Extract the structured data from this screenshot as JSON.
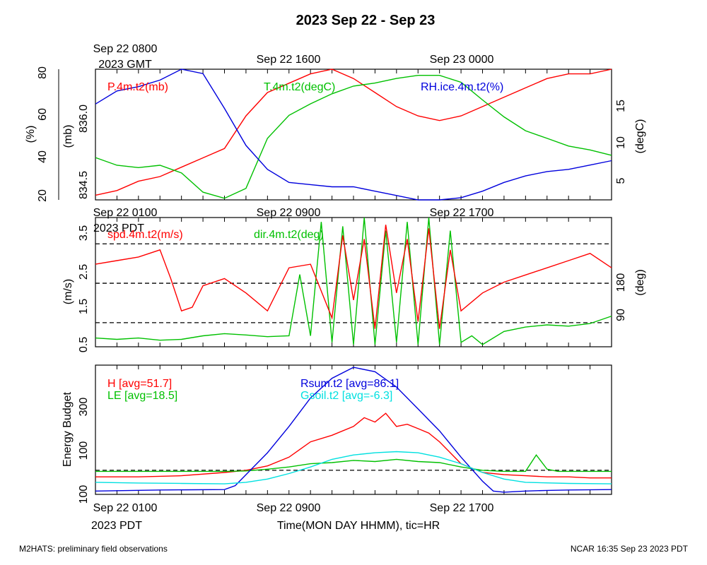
{
  "title": "2023 Sep 22 - Sep 23",
  "footer": {
    "left": "M2HATS: preliminary field observations",
    "right": "NCAR 16:35 Sep 23 2023 PDT"
  },
  "top_axis": {
    "ticks": [
      "Sep 22 0800",
      "Sep 22 1600",
      "Sep 23 0000"
    ],
    "second_line": "2023 GMT"
  },
  "bottom_axis": {
    "ticks": [
      "Sep 22 0100",
      "Sep 22 0900",
      "Sep 22 1700"
    ],
    "second_line": "2023 PDT",
    "xlabel": "Time(MON DAY HHMM), tic=HR"
  },
  "colors": {
    "red": "#ff0000",
    "green": "#00c000",
    "blue": "#0000dd",
    "cyan": "#00e0e0",
    "black": "#000000"
  },
  "chart_data": [
    {
      "type": "line",
      "panel": "pressure-temperature-humidity",
      "x_unit": "hours since Sep 22 0100 PDT",
      "xlim": [
        0,
        24
      ],
      "legend": [
        "P.4m.t2(mb)",
        "T.4m.t2(degC)",
        "RH.ice.4m.t2(%)"
      ],
      "axes": {
        "rh": {
          "label": "(%)",
          "lim": [
            20,
            80
          ],
          "ticks": [
            "20",
            "40",
            "60",
            "80"
          ]
        },
        "p": {
          "label": "(mb)",
          "lim": [
            834.3,
            837.1
          ],
          "ticks": [
            "834.5",
            "836.0"
          ]
        },
        "t": {
          "label": "(degC)",
          "lim": [
            3,
            20
          ],
          "ticks": [
            "5",
            "10",
            "15"
          ]
        }
      },
      "series": [
        {
          "name": "P.4m.t2(mb)",
          "color": "red",
          "axis": "p",
          "x": [
            0,
            1,
            2,
            3,
            4,
            5,
            6,
            7,
            8,
            9,
            10,
            11,
            12,
            13,
            14,
            15,
            16,
            17,
            18,
            19,
            20,
            21,
            22,
            23,
            24
          ],
          "values": [
            834.4,
            834.5,
            834.7,
            834.8,
            835.0,
            835.2,
            835.4,
            836.1,
            836.6,
            836.8,
            837.0,
            837.1,
            836.9,
            836.6,
            836.3,
            836.1,
            836.0,
            836.1,
            836.3,
            836.5,
            836.7,
            836.9,
            837.0,
            837.0,
            837.1
          ]
        },
        {
          "name": "T.4m.t2(degC)",
          "color": "green",
          "axis": "t",
          "x": [
            0,
            1,
            2,
            3,
            4,
            5,
            6,
            7,
            8,
            9,
            10,
            11,
            12,
            13,
            14,
            15,
            16,
            17,
            18,
            19,
            20,
            21,
            22,
            23,
            24
          ],
          "values": [
            8.5,
            7.5,
            7.2,
            7.5,
            6.5,
            4.0,
            3.2,
            4.5,
            11.0,
            14.0,
            15.5,
            16.8,
            17.8,
            18.2,
            18.8,
            19.2,
            19.2,
            18.3,
            16.0,
            13.8,
            12.0,
            11.0,
            10.0,
            9.5,
            8.8
          ]
        },
        {
          "name": "RH.ice.4m.t2(%)",
          "color": "blue",
          "axis": "rh",
          "x": [
            0,
            1,
            2,
            3,
            4,
            5,
            6,
            7,
            8,
            9,
            10,
            11,
            12,
            13,
            14,
            15,
            16,
            17,
            18,
            19,
            20,
            21,
            22,
            23,
            24
          ],
          "values": [
            64,
            70,
            72,
            75,
            80,
            78,
            62,
            45,
            34,
            28,
            27,
            26,
            26,
            24,
            22,
            20,
            20,
            21,
            24,
            28,
            31,
            33,
            34,
            36,
            38
          ]
        }
      ]
    },
    {
      "type": "line",
      "panel": "wind",
      "x_unit": "hours since Sep 22 0100 PDT",
      "xlim": [
        0,
        24
      ],
      "legend": [
        "spd.4m.t2(m/s)",
        "dir.4m.t2(deg)"
      ],
      "axes": {
        "spd": {
          "label": "(m/s)",
          "lim": [
            0.5,
            4.1
          ],
          "ticks": [
            "0.5",
            "1.5",
            "2.5",
            "3.5"
          ]
        },
        "dir": {
          "label": "(deg)",
          "lim": [
            35,
            330
          ],
          "ticks": [
            "90",
            "180"
          ]
        }
      },
      "reference_lines_deg": [
        90,
        180,
        270
      ],
      "series": [
        {
          "name": "spd.4m.t2(m/s)",
          "color": "red",
          "axis": "spd",
          "x": [
            0,
            1,
            2,
            3,
            3.5,
            4,
            4.5,
            5,
            6,
            7,
            8,
            9,
            10,
            11,
            11.5,
            12,
            12.5,
            13,
            13.5,
            14,
            14.5,
            15,
            15.5,
            16,
            16.5,
            17,
            18,
            19,
            20,
            21,
            22,
            23,
            24
          ],
          "values": [
            2.8,
            2.9,
            3.0,
            3.2,
            2.4,
            1.5,
            1.6,
            2.2,
            2.4,
            2.0,
            1.5,
            2.7,
            2.8,
            1.3,
            3.6,
            1.8,
            3.5,
            1.0,
            3.9,
            2.0,
            3.5,
            1.2,
            3.8,
            1.0,
            3.2,
            1.5,
            2.0,
            2.3,
            2.5,
            2.7,
            2.9,
            3.1,
            2.7
          ]
        },
        {
          "name": "dir.4m.t2(deg)",
          "color": "green",
          "axis": "dir",
          "x": [
            0,
            1,
            2,
            3,
            4,
            5,
            6,
            7,
            8,
            9,
            9.5,
            10,
            10.5,
            11,
            11.5,
            12,
            12.5,
            13,
            13.5,
            14,
            14.5,
            15,
            15.5,
            16,
            16.5,
            17,
            17.5,
            18,
            19,
            20,
            21,
            22,
            23,
            24
          ],
          "values": [
            55,
            52,
            55,
            50,
            52,
            60,
            65,
            62,
            58,
            60,
            200,
            60,
            320,
            45,
            310,
            40,
            330,
            40,
            300,
            45,
            320,
            40,
            330,
            40,
            300,
            45,
            60,
            40,
            70,
            80,
            85,
            82,
            88,
            105
          ]
        }
      ]
    },
    {
      "type": "line",
      "panel": "energy-budget",
      "x_unit": "hours since Sep 22 0100 PDT",
      "xlim": [
        0,
        24
      ],
      "ylabel": "Energy Budget",
      "ylim": [
        -110,
        480
      ],
      "yticks": [
        "100",
        "100",
        "300"
      ],
      "reference_line": 0,
      "legend": [
        "H [avg=51.7]",
        "LE [avg=18.5]",
        "Rsum.t2 [avg=86.1]",
        "Gsoil.t2 [avg=-6.3]"
      ],
      "series": [
        {
          "name": "H [avg=51.7]",
          "color": "red",
          "x": [
            0,
            2,
            4,
            6,
            7,
            8,
            9,
            10,
            11,
            12,
            12.5,
            13,
            13.5,
            14,
            14.5,
            15,
            15.5,
            16,
            17,
            18,
            19,
            20,
            21,
            22,
            23,
            24
          ],
          "values": [
            -30,
            -30,
            -25,
            -10,
            0,
            20,
            60,
            130,
            160,
            200,
            240,
            220,
            260,
            200,
            210,
            190,
            170,
            130,
            30,
            -10,
            -20,
            -25,
            -30,
            -30,
            -35,
            -35
          ]
        },
        {
          "name": "LE [avg=18.5]",
          "color": "green",
          "x": [
            0,
            2,
            4,
            6,
            7,
            8,
            9,
            10,
            11,
            12,
            13,
            14,
            15,
            16,
            17,
            18,
            19,
            20,
            20.5,
            21,
            21.5,
            22,
            24
          ],
          "values": [
            -5,
            -5,
            -5,
            -5,
            -3,
            5,
            15,
            30,
            35,
            45,
            40,
            50,
            40,
            35,
            15,
            0,
            -5,
            -5,
            70,
            5,
            -5,
            -5,
            -5
          ]
        },
        {
          "name": "Rsum.t2 [avg=86.1]",
          "color": "blue",
          "x": [
            0,
            3,
            6,
            6.5,
            7,
            8,
            9,
            10,
            11,
            12,
            13,
            14,
            15,
            16,
            17,
            18,
            18.5,
            19,
            20,
            21,
            22,
            24
          ],
          "values": [
            -95,
            -90,
            -88,
            -70,
            -20,
            80,
            200,
            330,
            420,
            470,
            450,
            380,
            280,
            180,
            60,
            -50,
            -95,
            -100,
            -95,
            -92,
            -90,
            -88
          ]
        },
        {
          "name": "Gsoil.t2 [avg=-6.3]",
          "color": "cyan",
          "x": [
            0,
            2,
            4,
            6,
            7,
            8,
            9,
            10,
            11,
            12,
            13,
            14,
            15,
            16,
            17,
            18,
            19,
            20,
            22,
            24
          ],
          "values": [
            -55,
            -58,
            -60,
            -62,
            -55,
            -40,
            -15,
            15,
            50,
            70,
            80,
            85,
            80,
            60,
            30,
            -10,
            -40,
            -55,
            -60,
            -62
          ]
        }
      ]
    }
  ]
}
